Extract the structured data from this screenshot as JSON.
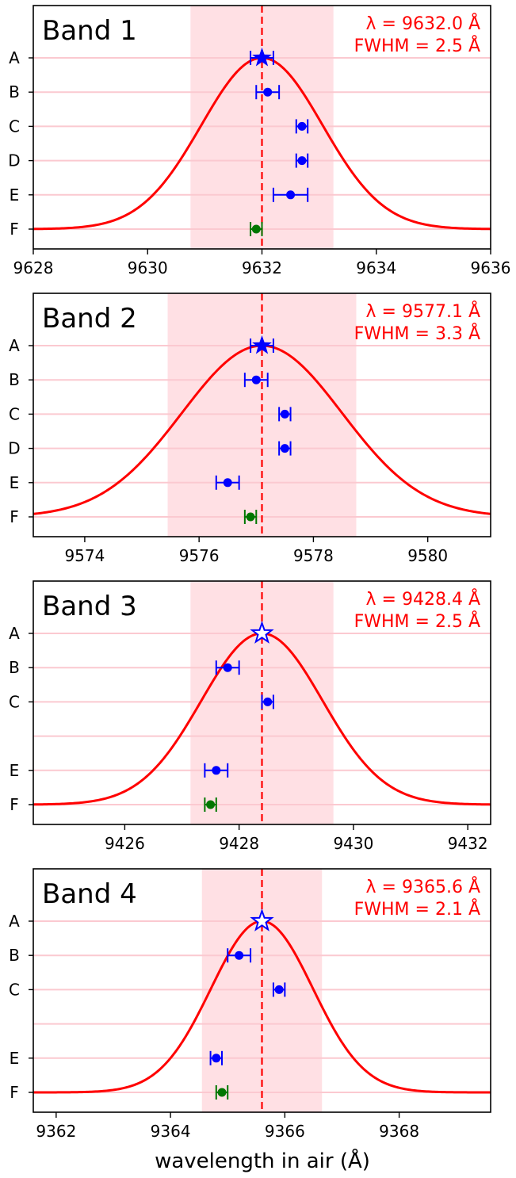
{
  "figure": {
    "xlabel": "wavelength in air  (Å)"
  },
  "chart_data": [
    {
      "type": "scatter",
      "title": "Band 1",
      "annotation": [
        "λ = 9632.0 Å",
        "FWHM = 2.5 Å"
      ],
      "center": 9632.0,
      "fwhm": 2.5,
      "xlim": [
        9628,
        9636
      ],
      "xticks": [
        9628,
        9630,
        9632,
        9634,
        9636
      ],
      "rows": [
        {
          "label": "A",
          "x": 9632.0,
          "err": 0.2,
          "marker": "star-filled",
          "color": "#0000ff"
        },
        {
          "label": "B",
          "x": 9632.1,
          "err": 0.2,
          "marker": "dot",
          "color": "#0000ff"
        },
        {
          "label": "C",
          "x": 9632.7,
          "err": 0.1,
          "marker": "dot",
          "color": "#0000ff"
        },
        {
          "label": "D",
          "x": 9632.7,
          "err": 0.1,
          "marker": "dot",
          "color": "#0000ff"
        },
        {
          "label": "E",
          "x": 9632.5,
          "err": 0.3,
          "marker": "dot",
          "color": "#0000ff"
        },
        {
          "label": "F",
          "x": 9631.9,
          "err": 0.1,
          "marker": "dot",
          "color": "#007700"
        }
      ]
    },
    {
      "type": "scatter",
      "title": "Band 2",
      "annotation": [
        "λ = 9577.1 Å",
        "FWHM = 3.3 Å"
      ],
      "center": 9577.1,
      "fwhm": 3.3,
      "xlim": [
        9573.1,
        9581.1
      ],
      "xticks": [
        9574,
        9576,
        9578,
        9580
      ],
      "rows": [
        {
          "label": "A",
          "x": 9577.1,
          "err": 0.2,
          "marker": "star-filled",
          "color": "#0000ff"
        },
        {
          "label": "B",
          "x": 9577.0,
          "err": 0.2,
          "marker": "dot",
          "color": "#0000ff"
        },
        {
          "label": "C",
          "x": 9577.5,
          "err": 0.1,
          "marker": "dot",
          "color": "#0000ff"
        },
        {
          "label": "D",
          "x": 9577.5,
          "err": 0.1,
          "marker": "dot",
          "color": "#0000ff"
        },
        {
          "label": "E",
          "x": 9576.5,
          "err": 0.2,
          "marker": "dot",
          "color": "#0000ff"
        },
        {
          "label": "F",
          "x": 9576.9,
          "err": 0.1,
          "marker": "dot",
          "color": "#007700"
        }
      ]
    },
    {
      "type": "scatter",
      "title": "Band 3",
      "annotation": [
        "λ = 9428.4 Å",
        "FWHM = 2.5 Å"
      ],
      "center": 9428.4,
      "fwhm": 2.5,
      "xlim": [
        9424.4,
        9432.4
      ],
      "xticks": [
        9426,
        9428,
        9430,
        9432
      ],
      "rows": [
        {
          "label": "A",
          "x": 9428.4,
          "err": 0,
          "marker": "star-open",
          "color": "#0000ff"
        },
        {
          "label": "B",
          "x": 9427.8,
          "err": 0.2,
          "marker": "dot",
          "color": "#0000ff"
        },
        {
          "label": "C",
          "x": 9428.5,
          "err": 0.1,
          "marker": "dot",
          "color": "#0000ff"
        },
        {
          "label": "",
          "x": null,
          "err": 0,
          "marker": "none",
          "color": "#0000ff"
        },
        {
          "label": "E",
          "x": 9427.6,
          "err": 0.2,
          "marker": "dot",
          "color": "#0000ff"
        },
        {
          "label": "F",
          "x": 9427.5,
          "err": 0.1,
          "marker": "dot",
          "color": "#007700"
        }
      ]
    },
    {
      "type": "scatter",
      "title": "Band 4",
      "annotation": [
        "λ = 9365.6 Å",
        "FWHM = 2.1 Å"
      ],
      "center": 9365.6,
      "fwhm": 2.1,
      "xlim": [
        9361.6,
        9369.6
      ],
      "xticks": [
        9362,
        9364,
        9366,
        9368
      ],
      "rows": [
        {
          "label": "A",
          "x": 9365.6,
          "err": 0,
          "marker": "star-open",
          "color": "#0000ff"
        },
        {
          "label": "B",
          "x": 9365.2,
          "err": 0.2,
          "marker": "dot",
          "color": "#0000ff"
        },
        {
          "label": "C",
          "x": 9365.9,
          "err": 0.1,
          "marker": "dot",
          "color": "#0000ff"
        },
        {
          "label": "",
          "x": null,
          "err": 0,
          "marker": "none",
          "color": "#0000ff"
        },
        {
          "label": "E",
          "x": 9364.8,
          "err": 0.1,
          "marker": "dot",
          "color": "#0000ff"
        },
        {
          "label": "F",
          "x": 9364.9,
          "err": 0.1,
          "marker": "dot",
          "color": "#007700"
        }
      ]
    }
  ],
  "colors": {
    "curve": "#ff0000",
    "band": "#ffe0e4",
    "row_line": "#fbc9d0",
    "annotation": "#ff0000"
  }
}
